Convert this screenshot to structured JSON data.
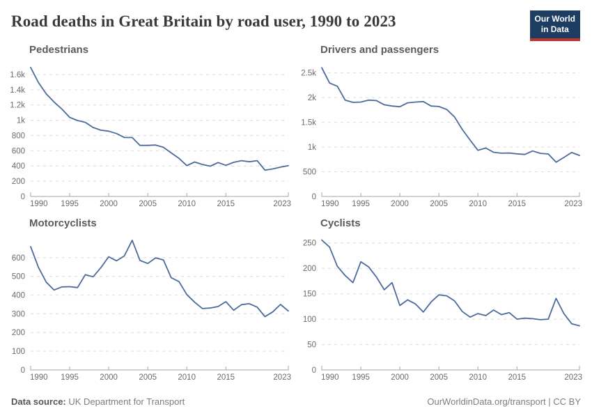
{
  "header": {
    "title": "Road deaths in Great Britain by road user, 1990 to 2023",
    "logo": {
      "line1": "Our World",
      "line2": "in Data",
      "bg_color": "#1d3d63",
      "accent_color": "#c0362c"
    }
  },
  "footer": {
    "source_label": "Data source:",
    "source_value": "UK Department for Transport",
    "right_text": "OurWorldinData.org/transport | CC BY"
  },
  "colors": {
    "line": "#4c6a9c",
    "grid": "#dcdcdc",
    "axis": "#a5a5a5",
    "tick_label": "#6b6b6b",
    "panel_title": "#5b5b5b"
  },
  "chart_data": [
    {
      "type": "line",
      "title": "Pedestrians",
      "x_range": [
        1990,
        2023
      ],
      "x_step": 1,
      "values": [
        1694,
        1496,
        1347,
        1241,
        1148,
        1038,
        997,
        973,
        906,
        870,
        857,
        826,
        775,
        774,
        671,
        671,
        675,
        646,
        572,
        500,
        405,
        453,
        420,
        398,
        446,
        409,
        448,
        470,
        456,
        470,
        346,
        361,
        385,
        405
      ],
      "x_ticks": [
        1990,
        1995,
        2000,
        2005,
        2010,
        2015,
        2023
      ],
      "y_ticks": [
        {
          "v": 0,
          "label": "0"
        },
        {
          "v": 200,
          "label": "200"
        },
        {
          "v": 400,
          "label": "400"
        },
        {
          "v": 600,
          "label": "600"
        },
        {
          "v": 800,
          "label": "800"
        },
        {
          "v": 1000,
          "label": "1k"
        },
        {
          "v": 1200,
          "label": "1.2k"
        },
        {
          "v": 1400,
          "label": "1.4k"
        },
        {
          "v": 1600,
          "label": "1.6k"
        }
      ],
      "y_max": 1720,
      "ylim": [
        0,
        1720
      ],
      "grid": true,
      "xlabel": "",
      "ylabel": ""
    },
    {
      "type": "line",
      "title": "Drivers and passengers",
      "x_range": [
        1990,
        2023
      ],
      "x_step": 1,
      "values": [
        2605,
        2295,
        2230,
        1950,
        1905,
        1910,
        1950,
        1940,
        1855,
        1830,
        1815,
        1895,
        1910,
        1920,
        1830,
        1820,
        1760,
        1610,
        1355,
        1140,
        935,
        980,
        893,
        875,
        880,
        862,
        850,
        920,
        872,
        860,
        694,
        790,
        890,
        830
      ],
      "x_ticks": [
        1990,
        1995,
        2000,
        2005,
        2010,
        2015,
        2023
      ],
      "y_ticks": [
        {
          "v": 0,
          "label": "0"
        },
        {
          "v": 500,
          "label": "500"
        },
        {
          "v": 1000,
          "label": "1k"
        },
        {
          "v": 1500,
          "label": "1.5k"
        },
        {
          "v": 2000,
          "label": "2k"
        },
        {
          "v": 2500,
          "label": "2.5k"
        }
      ],
      "y_max": 2650,
      "ylim": [
        0,
        2650
      ],
      "grid": true,
      "xlabel": "",
      "ylabel": ""
    },
    {
      "type": "line",
      "title": "Motorcyclists",
      "x_range": [
        1990,
        2023
      ],
      "x_step": 1,
      "values": [
        659,
        548,
        469,
        427,
        444,
        445,
        440,
        509,
        498,
        547,
        605,
        583,
        609,
        693,
        585,
        569,
        599,
        588,
        493,
        472,
        403,
        362,
        328,
        331,
        339,
        365,
        319,
        349,
        354,
        336,
        285,
        310,
        350,
        315
      ],
      "x_ticks": [
        1990,
        1995,
        2000,
        2005,
        2010,
        2015,
        2023
      ],
      "y_ticks": [
        {
          "v": 0,
          "label": "0"
        },
        {
          "v": 100,
          "label": "100"
        },
        {
          "v": 200,
          "label": "200"
        },
        {
          "v": 300,
          "label": "300"
        },
        {
          "v": 400,
          "label": "400"
        },
        {
          "v": 500,
          "label": "500"
        },
        {
          "v": 600,
          "label": "600"
        }
      ],
      "y_max": 700,
      "ylim": [
        0,
        700
      ],
      "grid": true,
      "xlabel": "",
      "ylabel": ""
    },
    {
      "type": "line",
      "title": "Cyclists",
      "x_range": [
        1990,
        2023
      ],
      "x_step": 1,
      "values": [
        256,
        242,
        204,
        186,
        172,
        213,
        203,
        183,
        158,
        172,
        127,
        138,
        130,
        114,
        134,
        148,
        146,
        136,
        115,
        104,
        111,
        107,
        118,
        109,
        113,
        100,
        102,
        101,
        99,
        100,
        141,
        111,
        91,
        87
      ],
      "x_ticks": [
        1990,
        1995,
        2000,
        2005,
        2010,
        2015,
        2023
      ],
      "y_ticks": [
        {
          "v": 0,
          "label": "0"
        },
        {
          "v": 50,
          "label": "50"
        },
        {
          "v": 100,
          "label": "100"
        },
        {
          "v": 150,
          "label": "150"
        },
        {
          "v": 200,
          "label": "200"
        },
        {
          "v": 250,
          "label": "250"
        }
      ],
      "y_max": 258,
      "ylim": [
        0,
        258
      ],
      "grid": true,
      "xlabel": "",
      "ylabel": ""
    }
  ]
}
